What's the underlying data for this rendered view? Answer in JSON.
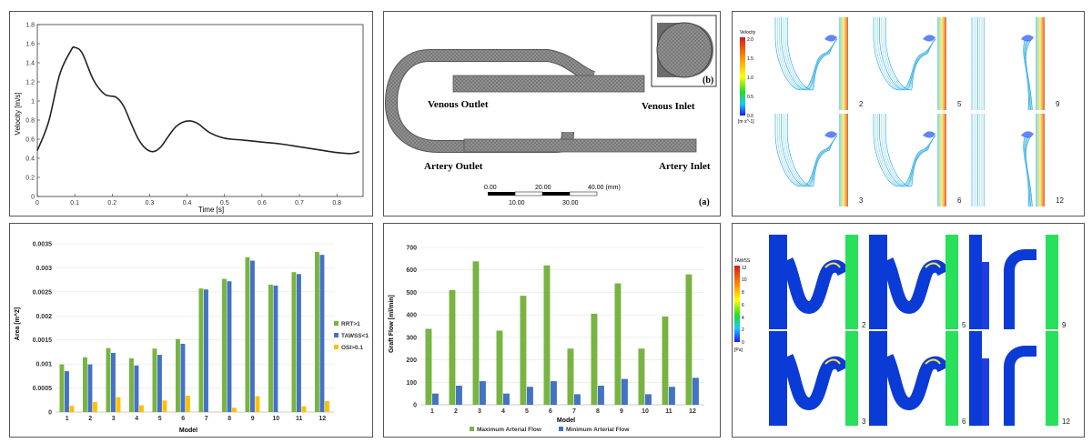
{
  "velocity_chart": {
    "chart_data": {
      "type": "line",
      "xlabel": "Time [s]",
      "ylabel": "Velocity [m/s]",
      "xlim": [
        0,
        0.87
      ],
      "ylim": [
        0,
        1.8
      ],
      "xticks": [
        "0",
        "0.1",
        "0.2",
        "0.3",
        "0.4",
        "0.5",
        "0.6",
        "0.7",
        "0.8"
      ],
      "yticks": [
        "0",
        "0.2",
        "0.4",
        "0.6",
        "0.8",
        "1",
        "1.2",
        "1.4",
        "1.6",
        "1.8"
      ],
      "x": [
        0,
        0.03,
        0.06,
        0.09,
        0.1,
        0.12,
        0.15,
        0.18,
        0.21,
        0.23,
        0.25,
        0.27,
        0.29,
        0.31,
        0.33,
        0.35,
        0.37,
        0.39,
        0.41,
        0.43,
        0.46,
        0.5,
        0.55,
        0.6,
        0.65,
        0.7,
        0.75,
        0.8,
        0.84,
        0.86
      ],
      "y": [
        0.48,
        0.78,
        1.28,
        1.53,
        1.56,
        1.5,
        1.22,
        1.07,
        1.04,
        0.95,
        0.77,
        0.6,
        0.5,
        0.47,
        0.52,
        0.63,
        0.73,
        0.78,
        0.79,
        0.76,
        0.67,
        0.61,
        0.59,
        0.57,
        0.55,
        0.52,
        0.49,
        0.46,
        0.45,
        0.47
      ],
      "grid": false
    }
  },
  "geometry_panel": {
    "labels": {
      "venous_outlet": "Venous Outlet",
      "venous_inlet": "Venous Inlet",
      "artery_outlet": "Artery Outlet",
      "artery_inlet": "Artery Inlet",
      "panel_a": "(a)",
      "panel_b": "(b)"
    },
    "scale_bar": {
      "top_labels": [
        "0.00",
        "20.00",
        "40.00 (mm)"
      ],
      "bottom_labels": [
        "10.00",
        "30.00"
      ]
    }
  },
  "velocity_panel": {
    "colorbar_title": "Velocity",
    "colorbar_ticks": [
      "2.0",
      "1.5",
      "1.0",
      "0.5",
      "0.0"
    ],
    "colorbar_unit": "[m s^-1]",
    "models": [
      "2",
      "5",
      "9",
      "3",
      "6",
      "12"
    ],
    "colors": {
      "high": "#d7191c",
      "mid": "#ffff00",
      "low": "#1a1aff"
    }
  },
  "area_chart": {
    "chart_data": {
      "type": "bar",
      "categories": [
        "1",
        "2",
        "3",
        "4",
        "5",
        "6",
        "7",
        "8",
        "9",
        "10",
        "11",
        "12"
      ],
      "series": [
        {
          "name": "RRT>1",
          "color": "#77b442",
          "values": [
            0.00099,
            0.00114,
            0.00133,
            0.00112,
            0.00132,
            0.00152,
            0.00257,
            0.00277,
            0.00322,
            0.00265,
            0.00291,
            0.00333
          ]
        },
        {
          "name": "TAWSS<1",
          "color": "#4472c4",
          "values": [
            0.00085,
            0.00099,
            0.00123,
            0.00097,
            0.00119,
            0.00142,
            0.00255,
            0.00272,
            0.00315,
            0.00263,
            0.00287,
            0.00327
          ]
        },
        {
          "name": "OSI>0.1",
          "color": "#ffc000",
          "values": [
            0.00013,
            0.00021,
            0.00031,
            0.00014,
            0.00024,
            0.00034,
            0.0,
            9e-05,
            0.00033,
            0.0,
            0.00012,
            0.00023
          ]
        }
      ],
      "xlabel": "Model",
      "ylabel": "Area [m^2]",
      "ylim": [
        0,
        0.0035
      ],
      "yticks": [
        "0",
        "0.0005",
        "0.001",
        "0.0015",
        "0.002",
        "0.0025",
        "0.003",
        "0.0035"
      ],
      "legend": "right"
    }
  },
  "flow_chart": {
    "chart_data": {
      "type": "bar",
      "categories": [
        "1",
        "2",
        "3",
        "4",
        "5",
        "6",
        "7",
        "8",
        "9",
        "10",
        "11",
        "12"
      ],
      "series": [
        {
          "name": "Maximum Arterial Flow",
          "color": "#77b442",
          "values": [
            338,
            510,
            638,
            330,
            485,
            620,
            250,
            405,
            540,
            250,
            393,
            580
          ]
        },
        {
          "name": "Minimum Arterial Flow",
          "color": "#4472c4",
          "values": [
            50,
            85,
            105,
            50,
            80,
            105,
            47,
            85,
            115,
            47,
            80,
            120
          ]
        }
      ],
      "xlabel": "Model",
      "ylabel": "Graft Flow [ml/min]",
      "ylim": [
        0,
        700
      ],
      "yticks": [
        "0",
        "100",
        "200",
        "300",
        "400",
        "500",
        "600",
        "700"
      ],
      "legend": "bottom"
    }
  },
  "tawss_panel": {
    "colorbar_title": "TAWSS",
    "colorbar_ticks": [
      "12",
      "10",
      "8",
      "6",
      "4",
      "2",
      "0"
    ],
    "colorbar_unit": "[Pa]",
    "models": [
      "2",
      "5",
      "9",
      "3",
      "6",
      "12"
    ],
    "colors": {
      "wall": "#0b3bd6",
      "high": "#28e05a"
    }
  }
}
